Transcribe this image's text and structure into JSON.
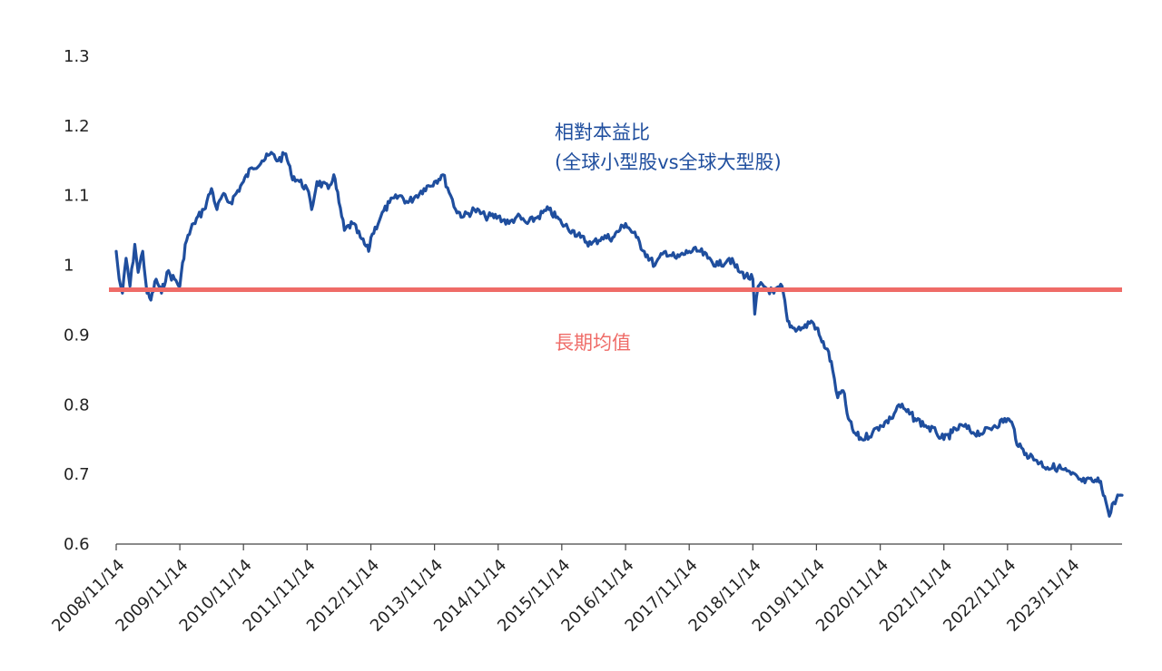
{
  "chart_data": {
    "type": "line",
    "title": "",
    "xlabel": "",
    "ylabel": "",
    "ylim": [
      0.6,
      1.3
    ],
    "yticks": [
      "1.3",
      "1.2",
      "1.1",
      "1",
      "0.9",
      "0.8",
      "0.7",
      "0.6"
    ],
    "ytick_values": [
      1.3,
      1.2,
      1.1,
      1.0,
      0.9,
      0.8,
      0.7,
      0.6
    ],
    "xticks": [
      "2008/11/14",
      "2009/11/14",
      "2010/11/14",
      "2011/11/14",
      "2012/11/14",
      "2013/11/14",
      "2014/11/14",
      "2015/11/14",
      "2016/11/14",
      "2017/11/14",
      "2018/11/14",
      "2019/11/14",
      "2020/11/14",
      "2021/11/14",
      "2022/11/14",
      "2023/11/14"
    ],
    "xrange": [
      "2008/11/14",
      "2024/09/01"
    ],
    "grid": false,
    "series": [
      {
        "name": "相對本益比",
        "color": "#1f4e9e",
        "points": [
          [
            "2008/11/14",
            1.02
          ],
          [
            "2008/12/01",
            0.98
          ],
          [
            "2008/12/20",
            0.96
          ],
          [
            "2009/01/10",
            1.01
          ],
          [
            "2009/02/01",
            0.97
          ],
          [
            "2009/03/01",
            1.03
          ],
          [
            "2009/03/20",
            0.99
          ],
          [
            "2009/04/15",
            1.02
          ],
          [
            "2009/05/10",
            0.96
          ],
          [
            "2009/06/01",
            0.95
          ],
          [
            "2009/07/01",
            0.98
          ],
          [
            "2009/08/01",
            0.96
          ],
          [
            "2009/09/01",
            0.99
          ],
          [
            "2009/10/15",
            0.98
          ],
          [
            "2009/11/14",
            0.97
          ],
          [
            "2009/12/15",
            1.03
          ],
          [
            "2010/02/01",
            1.06
          ],
          [
            "2010/04/01",
            1.08
          ],
          [
            "2010/05/15",
            1.11
          ],
          [
            "2010/06/15",
            1.08
          ],
          [
            "2010/07/15",
            1.1
          ],
          [
            "2010/09/01",
            1.09
          ],
          [
            "2010/11/14",
            1.12
          ],
          [
            "2011/01/01",
            1.14
          ],
          [
            "2011/03/01",
            1.15
          ],
          [
            "2011/05/01",
            1.16
          ],
          [
            "2011/06/01",
            1.15
          ],
          [
            "2011/07/15",
            1.16
          ],
          [
            "2011/08/15",
            1.13
          ],
          [
            "2011/10/01",
            1.12
          ],
          [
            "2011/11/14",
            1.11
          ],
          [
            "2011/12/10",
            1.08
          ],
          [
            "2012/01/10",
            1.12
          ],
          [
            "2012/03/15",
            1.11
          ],
          [
            "2012/04/15",
            1.13
          ],
          [
            "2012/05/15",
            1.09
          ],
          [
            "2012/06/15",
            1.05
          ],
          [
            "2012/08/01",
            1.06
          ],
          [
            "2012/09/15",
            1.04
          ],
          [
            "2012/11/01",
            1.02
          ],
          [
            "2012/11/14",
            1.04
          ],
          [
            "2013/01/10",
            1.07
          ],
          [
            "2013/03/01",
            1.09
          ],
          [
            "2013/05/01",
            1.1
          ],
          [
            "2013/06/15",
            1.09
          ],
          [
            "2013/08/01",
            1.1
          ],
          [
            "2013/09/15",
            1.11
          ],
          [
            "2013/11/14",
            1.12
          ],
          [
            "2014/01/01",
            1.13
          ],
          [
            "2014/02/15",
            1.1
          ],
          [
            "2014/03/15",
            1.08
          ],
          [
            "2014/05/01",
            1.07
          ],
          [
            "2014/07/01",
            1.08
          ],
          [
            "2014/09/01",
            1.07
          ],
          [
            "2014/11/14",
            1.07
          ],
          [
            "2015/01/15",
            1.06
          ],
          [
            "2015/03/01",
            1.07
          ],
          [
            "2015/05/01",
            1.06
          ],
          [
            "2015/07/01",
            1.07
          ],
          [
            "2015/09/01",
            1.08
          ],
          [
            "2015/11/14",
            1.06
          ],
          [
            "2016/01/15",
            1.05
          ],
          [
            "2016/03/01",
            1.04
          ],
          [
            "2016/05/01",
            1.03
          ],
          [
            "2016/07/01",
            1.04
          ],
          [
            "2016/09/01",
            1.04
          ],
          [
            "2016/11/14",
            1.06
          ],
          [
            "2017/01/15",
            1.04
          ],
          [
            "2017/03/01",
            1.02
          ],
          [
            "2017/05/01",
            1.0
          ],
          [
            "2017/07/01",
            1.02
          ],
          [
            "2017/09/01",
            1.01
          ],
          [
            "2017/11/14",
            1.02
          ],
          [
            "2018/01/15",
            1.02
          ],
          [
            "2018/03/01",
            1.01
          ],
          [
            "2018/05/01",
            1.0
          ],
          [
            "2018/07/01",
            1.01
          ],
          [
            "2018/09/01",
            0.99
          ],
          [
            "2018/11/14",
            0.98
          ],
          [
            "2018/11/25",
            0.93
          ],
          [
            "2018/12/15",
            0.97
          ],
          [
            "2019/01/15",
            0.97
          ],
          [
            "2019/03/15",
            0.96
          ],
          [
            "2019/05/01",
            0.97
          ],
          [
            "2019/06/01",
            0.92
          ],
          [
            "2019/07/01",
            0.91
          ],
          [
            "2019/09/01",
            0.91
          ],
          [
            "2019/10/15",
            0.92
          ],
          [
            "2019/11/14",
            0.91
          ],
          [
            "2019/12/15",
            0.89
          ],
          [
            "2020/01/15",
            0.88
          ],
          [
            "2020/02/15",
            0.85
          ],
          [
            "2020/03/15",
            0.81
          ],
          [
            "2020/04/15",
            0.82
          ],
          [
            "2020/05/15",
            0.78
          ],
          [
            "2020/06/15",
            0.76
          ],
          [
            "2020/08/01",
            0.75
          ],
          [
            "2020/10/01",
            0.76
          ],
          [
            "2020/11/14",
            0.77
          ],
          [
            "2021/01/15",
            0.78
          ],
          [
            "2021/03/01",
            0.8
          ],
          [
            "2021/04/15",
            0.79
          ],
          [
            "2021/06/01",
            0.78
          ],
          [
            "2021/08/01",
            0.77
          ],
          [
            "2021/10/01",
            0.76
          ],
          [
            "2021/11/14",
            0.75
          ],
          [
            "2022/01/01",
            0.76
          ],
          [
            "2022/03/01",
            0.77
          ],
          [
            "2022/05/01",
            0.76
          ],
          [
            "2022/07/01",
            0.76
          ],
          [
            "2022/09/01",
            0.77
          ],
          [
            "2022/11/14",
            0.78
          ],
          [
            "2022/12/15",
            0.77
          ],
          [
            "2023/01/15",
            0.74
          ],
          [
            "2023/03/01",
            0.73
          ],
          [
            "2023/05/01",
            0.72
          ],
          [
            "2023/07/01",
            0.71
          ],
          [
            "2023/09/01",
            0.71
          ],
          [
            "2023/11/14",
            0.7
          ],
          [
            "2024/01/15",
            0.69
          ],
          [
            "2024/03/15",
            0.69
          ],
          [
            "2024/05/01",
            0.69
          ],
          [
            "2024/06/01",
            0.66
          ],
          [
            "2024/06/20",
            0.64
          ],
          [
            "2024/07/15",
            0.66
          ],
          [
            "2024/08/15",
            0.67
          ],
          [
            "2024/09/01",
            0.67
          ]
        ]
      },
      {
        "name": "長期均值",
        "color": "#ef6b67",
        "value": 0.965
      }
    ],
    "annotations": [
      {
        "line1": "相對本益比",
        "line2": "(全球小型股vs全球大型股)",
        "color": "#1f4e9e"
      },
      {
        "line1": "長期均值",
        "color": "#ef6b67"
      }
    ]
  }
}
